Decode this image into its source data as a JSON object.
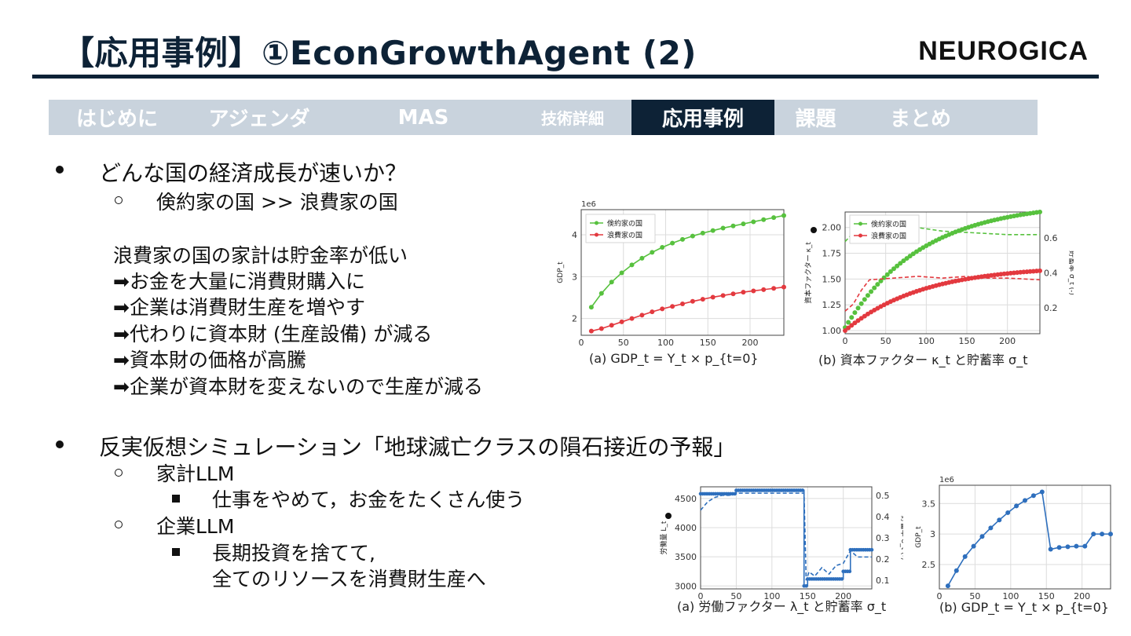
{
  "header": {
    "title": "【応用事例】①EconGrowthAgent (2)",
    "logo": "NEURОGICA"
  },
  "nav": {
    "tabs": [
      {
        "label": "はじめに"
      },
      {
        "label": "アジェンダ"
      },
      {
        "label": "MAS"
      },
      {
        "label": "技術詳細"
      },
      {
        "label": "応用事例"
      },
      {
        "label": "課題"
      },
      {
        "label": "まとめ"
      }
    ],
    "active": "応用事例"
  },
  "section1": {
    "bullet": "どんな国の経済成長が速いか？",
    "sub": "倹約家の国 >> 浪費家の国",
    "lines": [
      "浪費家の国の家計は貯金率が低い",
      "➡お金を大量に消費財購入に",
      "➡企業は消費財生産を増やす",
      "➡代わりに資本財 (生産設備) が減る",
      "➡資本財の価格が高騰",
      "➡企業が資本財を変えないので生産が減る"
    ]
  },
  "section2": {
    "bullet": "反実仮想シミュレーション「地球滅亡クラスの隕石接近の予報」",
    "sub1": "家計LLM",
    "sub1_item": "仕事をやめて，お金をたくさん使う",
    "sub2": "企業LLM",
    "sub2_item_line1": "長期投資を捨てて,",
    "sub2_item_line2": "全てのリソースを消費財生産へ"
  },
  "colors": {
    "navy": "#0d2236",
    "green": "#57c13e",
    "red": "#e3393f",
    "blue": "#2e6fbd",
    "nav_bg": "#c9d3dd"
  },
  "chart_data": [
    {
      "type": "line",
      "id": "chart-a-top",
      "caption": "(a) GDP_t = Y_t × p_{t=0}",
      "scale_label": "1e6",
      "ylabel": "GDP_t",
      "xlim": [
        0,
        240
      ],
      "ylim": [
        1.6,
        4.6
      ],
      "xticks": [
        0,
        50,
        100,
        150,
        200
      ],
      "yticks": [
        2,
        3,
        4
      ],
      "legend": "top-left",
      "series": [
        {
          "name": "倹約家の国",
          "color": "#57c13e",
          "x": [
            12,
            24,
            36,
            48,
            60,
            72,
            84,
            96,
            108,
            120,
            132,
            144,
            156,
            168,
            180,
            192,
            204,
            216,
            228,
            240
          ],
          "y": [
            2.27,
            2.6,
            2.87,
            3.09,
            3.28,
            3.44,
            3.58,
            3.7,
            3.8,
            3.89,
            3.97,
            4.04,
            4.1,
            4.16,
            4.21,
            4.26,
            4.31,
            4.36,
            4.41,
            4.46
          ]
        },
        {
          "name": "浪費家の国",
          "color": "#e3393f",
          "x": [
            12,
            24,
            36,
            48,
            60,
            72,
            84,
            96,
            108,
            120,
            132,
            144,
            156,
            168,
            180,
            192,
            204,
            216,
            228,
            240
          ],
          "y": [
            1.7,
            1.76,
            1.84,
            1.92,
            2.0,
            2.08,
            2.16,
            2.23,
            2.29,
            2.35,
            2.41,
            2.46,
            2.51,
            2.55,
            2.59,
            2.63,
            2.66,
            2.69,
            2.72,
            2.75
          ]
        }
      ]
    },
    {
      "type": "line",
      "id": "chart-b-top",
      "caption": "(b) 資本ファクター κ_t と貯蓄率 σ_t",
      "ylabel": "資本ファクター κ_t",
      "y2label": "貯蓄率 σ_t (-)",
      "xlim": [
        0,
        240
      ],
      "ylim": [
        0.97,
        2.15
      ],
      "y2lim": [
        0.05,
        0.75
      ],
      "xticks": [
        0,
        50,
        100,
        150,
        200
      ],
      "yticks": [
        1.0,
        1.25,
        1.5,
        1.75,
        2.0
      ],
      "y2ticks": [
        0.2,
        0.4,
        0.6
      ],
      "legend": "top-left",
      "series": [
        {
          "name": "倹約家の国",
          "color": "#57c13e",
          "kind": "points",
          "kappa_start": 1.03,
          "kappa_end": 2.15
        },
        {
          "name": "浪費家の国",
          "color": "#e3393f",
          "kind": "points",
          "kappa_start": 1.0,
          "kappa_end": 1.58
        },
        {
          "name": "倹約家の国 σ",
          "color": "#57c13e",
          "kind": "dashed",
          "x": [
            0,
            10,
            20,
            40,
            60,
            70,
            90,
            120,
            160,
            200,
            240
          ],
          "y": [
            0.58,
            0.63,
            0.65,
            0.66,
            0.68,
            0.65,
            0.66,
            0.64,
            0.63,
            0.62,
            0.62
          ]
        },
        {
          "name": "浪費家の国 σ",
          "color": "#e3393f",
          "kind": "dashed",
          "x": [
            0,
            10,
            20,
            30,
            60,
            90,
            120,
            150,
            160,
            200,
            240
          ],
          "y": [
            0.18,
            0.22,
            0.3,
            0.36,
            0.37,
            0.38,
            0.37,
            0.38,
            0.37,
            0.37,
            0.36
          ]
        }
      ]
    },
    {
      "type": "line",
      "id": "chart-a-bottom",
      "caption": "(a) 労働ファクター λ_t と貯蓄率 σ_t",
      "ylabel": "労働量 L_t",
      "y2label": "貯蓄率 σ_t (-)",
      "xlim": [
        0,
        240
      ],
      "ylim": [
        2950,
        4700
      ],
      "y2lim": [
        0.06,
        0.54
      ],
      "xticks": [
        0,
        50,
        100,
        150,
        200
      ],
      "yticks": [
        3000,
        3500,
        4000,
        4500
      ],
      "y2ticks": [
        0.1,
        0.2,
        0.3,
        0.4,
        0.5
      ],
      "series": [
        {
          "name": "L_t",
          "color": "#2e6fbd",
          "kind": "step",
          "segments": [
            [
              0,
              50,
              4580
            ],
            [
              50,
              145,
              4640
            ],
            [
              145,
              150,
              3000
            ],
            [
              150,
              200,
              3120
            ],
            [
              200,
              210,
              3250
            ],
            [
              210,
              240,
              3620
            ]
          ]
        },
        {
          "name": "σ_t",
          "color": "#2e6fbd",
          "kind": "dashed",
          "x": [
            0,
            10,
            20,
            30,
            40,
            50,
            145,
            148,
            152,
            160,
            170,
            180,
            190,
            200,
            210,
            220,
            240
          ],
          "y": [
            0.43,
            0.47,
            0.49,
            0.5,
            0.5,
            0.51,
            0.51,
            0.1,
            0.14,
            0.12,
            0.16,
            0.13,
            0.17,
            0.18,
            0.24,
            0.21,
            0.21
          ]
        }
      ]
    },
    {
      "type": "line",
      "id": "chart-b-bottom",
      "caption": "(b) GDP_t = Y_t × p_{t=0}",
      "scale_label": "1e6",
      "ylabel": "GDP_t",
      "xlim": [
        0,
        240
      ],
      "ylim": [
        2.1,
        3.8
      ],
      "xticks": [
        0,
        50,
        100,
        150,
        200
      ],
      "yticks": [
        2.5,
        3.0,
        3.5
      ],
      "series": [
        {
          "name": "GDP_t",
          "color": "#2e6fbd",
          "x": [
            12,
            24,
            36,
            48,
            60,
            72,
            84,
            96,
            108,
            120,
            132,
            144,
            156,
            168,
            180,
            192,
            204,
            216,
            228,
            240
          ],
          "y": [
            2.15,
            2.4,
            2.63,
            2.8,
            2.96,
            3.1,
            3.23,
            3.35,
            3.46,
            3.55,
            3.63,
            3.69,
            2.75,
            2.78,
            2.79,
            2.8,
            2.8,
            3.0,
            3.0,
            3.0
          ]
        }
      ]
    }
  ]
}
